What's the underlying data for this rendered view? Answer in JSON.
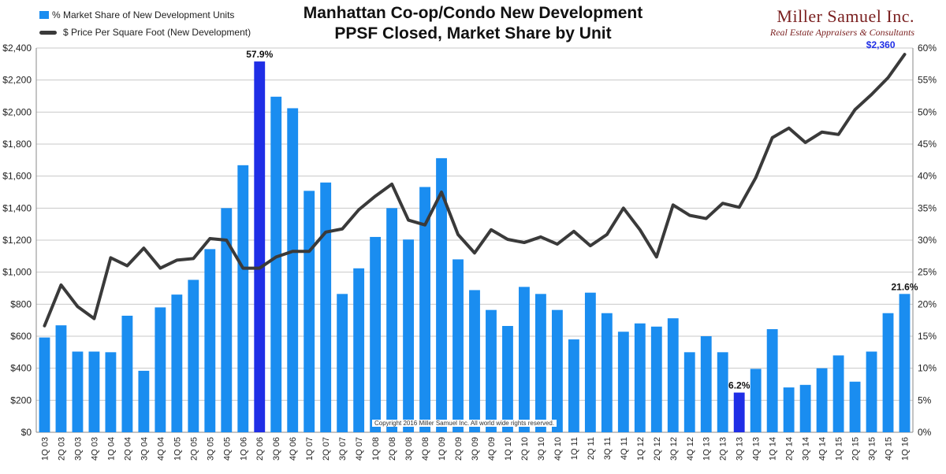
{
  "title_line1": "Manhattan Co-op/Condo New Development",
  "title_line2": "PPSF Closed, Market Share by Unit",
  "brand": {
    "name": "Miller Samuel Inc.",
    "subtitle": "Real Estate Appraisers & Consultants"
  },
  "copyright": "Copyright 2016 Miller Samuel Inc. All world wide rights reserved.",
  "colors": {
    "bar": "#1a8df0",
    "bar_highlight": "#1f2ee6",
    "line": "#3a3a3a",
    "grid": "#c8c8c8",
    "annotation_blue": "#1f2ee6"
  },
  "chart_data": {
    "type": "bar+line",
    "categories": [
      "1Q 03",
      "2Q 03",
      "3Q 03",
      "4Q 03",
      "1Q 04",
      "2Q 04",
      "3Q 04",
      "4Q 04",
      "1Q 05",
      "2Q 05",
      "3Q 05",
      "4Q 05",
      "1Q 06",
      "2Q 06",
      "3Q 06",
      "4Q 06",
      "1Q 07",
      "2Q 07",
      "3Q 07",
      "4Q 07",
      "1Q 08",
      "2Q 08",
      "3Q 08",
      "4Q 08",
      "1Q 09",
      "2Q 09",
      "3Q 09",
      "4Q 09",
      "1Q 10",
      "2Q 10",
      "3Q 10",
      "4Q 10",
      "1Q 11",
      "2Q 11",
      "3Q 11",
      "4Q 11",
      "1Q 12",
      "2Q 12",
      "3Q 12",
      "4Q 12",
      "1Q 13",
      "2Q 13",
      "3Q 13",
      "4Q 13",
      "1Q 14",
      "2Q 14",
      "3Q 14",
      "4Q 14",
      "1Q 15",
      "2Q 15",
      "3Q 15",
      "4Q 15",
      "1Q 16"
    ],
    "series": [
      {
        "name": "% Market Share of New Development Units",
        "type": "bar",
        "axis": "right",
        "values": [
          14.8,
          16.7,
          12.6,
          12.6,
          12.5,
          18.2,
          9.6,
          19.5,
          21.5,
          23.8,
          28.6,
          35.0,
          41.7,
          57.9,
          52.4,
          50.6,
          37.7,
          39.0,
          21.6,
          25.6,
          30.5,
          35.0,
          30.1,
          38.3,
          42.8,
          27.0,
          22.2,
          19.1,
          16.6,
          22.7,
          21.6,
          19.1,
          14.5,
          21.8,
          18.6,
          15.7,
          17.0,
          16.5,
          17.8,
          12.5,
          15.0,
          12.5,
          6.2,
          9.9,
          16.1,
          7.0,
          7.4,
          10.0,
          12.0,
          7.9,
          12.6,
          18.6,
          21.6
        ]
      },
      {
        "name": "$ Price Per Square Foot (New Development)",
        "type": "line",
        "axis": "left",
        "values": [
          665,
          920,
          785,
          710,
          1090,
          1040,
          1150,
          1025,
          1075,
          1085,
          1210,
          1200,
          1025,
          1025,
          1095,
          1130,
          1130,
          1250,
          1270,
          1390,
          1475,
          1550,
          1325,
          1295,
          1500,
          1235,
          1120,
          1265,
          1205,
          1185,
          1220,
          1175,
          1255,
          1165,
          1235,
          1400,
          1265,
          1095,
          1420,
          1355,
          1335,
          1430,
          1405,
          1590,
          1840,
          1900,
          1810,
          1875,
          1860,
          2015,
          2110,
          2215,
          2360
        ]
      }
    ],
    "left_axis": {
      "min": 0,
      "max": 2400,
      "ticks": [
        "$0",
        "$200",
        "$400",
        "$600",
        "$800",
        "$1,000",
        "$1,200",
        "$1,400",
        "$1,600",
        "$1,800",
        "$2,000",
        "$2,200",
        "$2,400"
      ]
    },
    "right_axis": {
      "min": 0,
      "max": 60,
      "ticks": [
        "0%",
        "5%",
        "10%",
        "15%",
        "20%",
        "25%",
        "30%",
        "35%",
        "40%",
        "45%",
        "50%",
        "55%",
        "60%"
      ]
    },
    "highlight_bars": [
      13,
      42
    ],
    "annotations": [
      {
        "label": "57.9%",
        "index": 13,
        "series": 0,
        "color": "#111111"
      },
      {
        "label": "6.2%",
        "index": 42,
        "series": 0,
        "color": "#111111"
      },
      {
        "label": "21.6%",
        "index": 52,
        "series": 0,
        "color": "#111111"
      },
      {
        "label": "$2,360",
        "index": 52,
        "series": 1,
        "color": "#1f2ee6"
      }
    ],
    "grid": true,
    "legend_position": "top-left"
  }
}
